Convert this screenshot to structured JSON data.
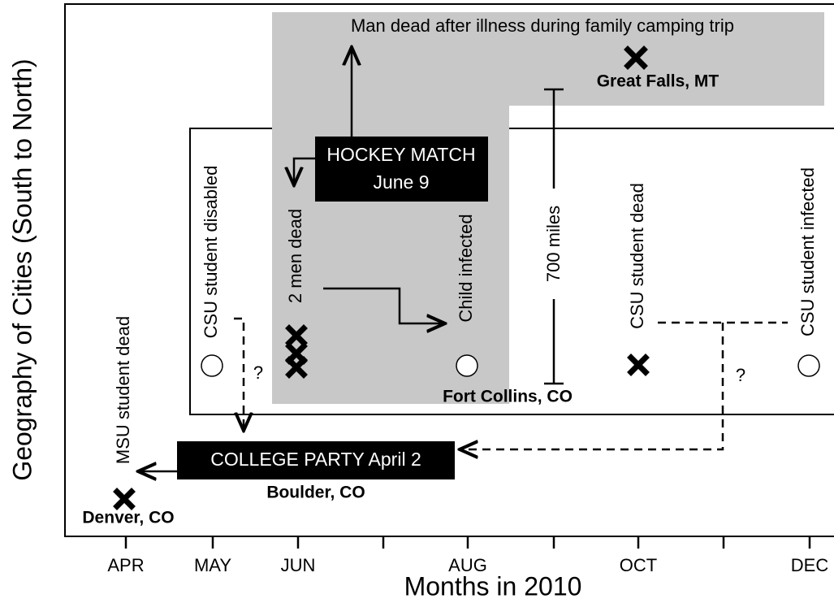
{
  "axes": {
    "y_title": "Geography of Cities (South to North)",
    "x_title": "Months in 2010",
    "x_labels": [
      "APR",
      "MAY",
      "JUN",
      "AUG",
      "OCT",
      "DEC"
    ]
  },
  "events": {
    "hockey": [
      "HOCKEY MATCH",
      "June 9"
    ],
    "party": "COLLEGE PARTY April 2",
    "camping": "Man dead after illness during family camping trip",
    "distance": "700 miles"
  },
  "cities": {
    "great_falls": "Great Falls, MT",
    "fort_collins": "Fort Collins, CO",
    "boulder": "Boulder, CO",
    "denver": "Denver, CO"
  },
  "cases": {
    "csu_disabled": "CSU student disabled",
    "two_men": "2 men dead",
    "child": "Child infected",
    "csu_dead": "CSU student dead",
    "csu_infected": "CSU student infected",
    "msu_dead": "MSU student dead"
  },
  "questions": [
    "?",
    "?"
  ]
}
